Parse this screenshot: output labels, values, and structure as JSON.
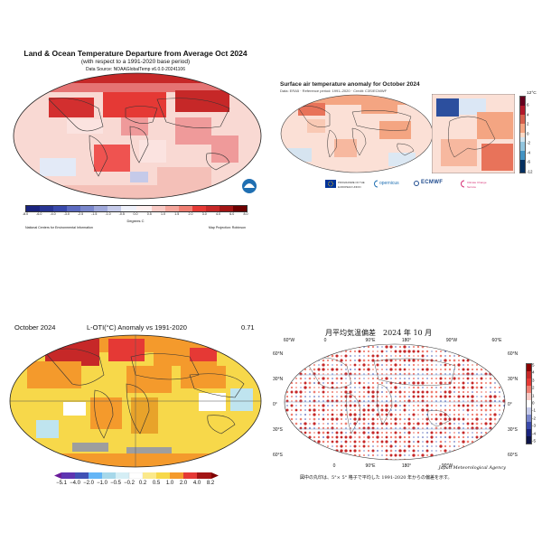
{
  "noaa": {
    "title": "Land & Ocean Temperature Departure from Average Oct 2024",
    "subtitle": "(with respect to a 1991-2020 base period)",
    "source": "Data Source: NOAAGlobalTemp v6.0.0-20241106",
    "colorbar_ticks": [
      "-8.0",
      "-6.0",
      "-4.0",
      "-3.0",
      "-2.5",
      "-1.5",
      "-1.0",
      "-0.5",
      "0.0",
      "0.5",
      "1.0",
      "1.5",
      "2.0",
      "3.0",
      "4.0",
      "6.0",
      "8.0"
    ],
    "unit": "Degrees C",
    "footer_left": "National Centers for Environmental Information",
    "footer_right": "Map Projection: Robinson"
  },
  "copernicus": {
    "title": "Surface air temperature anomaly for October 2024",
    "subtitle": "Data: ERA5 · Reference period: 1991–2020 · Credit: C3S/ECMWF",
    "unit": "12°C",
    "colorbar_ticks": [
      "6",
      "4",
      "2",
      "0",
      "-2",
      "-4",
      "-6",
      "-12"
    ],
    "logo_eu": "PROGRAMME OF THE EUROPEAN UNION",
    "logo_copernicus": "opernicus",
    "logo_ecmwf": "ECMWF",
    "logo_climate": "Climate Change Service"
  },
  "loti": {
    "left": "October 2024",
    "center": "L-OTI(°C) Anomaly vs 1991-2020",
    "right": "0.71",
    "colorbar_ticks": [
      "−5.1",
      "−4.0",
      "−2.0",
      "−1.0",
      "−0.5",
      "−0.2",
      "0.2",
      "0.5",
      "1.0",
      "2.0",
      "4.0",
      "8.2"
    ]
  },
  "jma": {
    "title": "月平均気温偏差　2024 年 10 月",
    "top_labels": [
      "60°W",
      "0",
      "90°E",
      "180°",
      "90°W",
      "60°E"
    ],
    "bottom_labels": [
      "0",
      "90°E",
      "180°",
      "90°W"
    ],
    "left_labels": [
      "60°N",
      "30°N",
      "0°",
      "30°S",
      "60°S"
    ],
    "right_labels": [
      "60°N",
      "30°N",
      "0°",
      "30°S",
      "60°S"
    ],
    "colorbar_ticks": [
      "5",
      "4",
      "3",
      "2",
      "1",
      "0",
      "-1",
      "-2",
      "-3",
      "-4",
      "-5"
    ],
    "agency": "Japan Meteorological Agency",
    "note": "図中の丸印は、5°× 5° 格子で平均した 1991-2020 年からの偏差を示す。"
  },
  "colors": {
    "warm_dark": "#8b0000",
    "warm": "#d73027",
    "warm_light": "#f4a582",
    "neutral": "#f7f7f7",
    "cool_light": "#92c5de",
    "cool": "#4575b4",
    "cool_dark": "#1a237e",
    "noaa_blue": "#1f6fb2",
    "loti_yellow": "#f7d84a",
    "loti_orange": "#f49a2c"
  }
}
